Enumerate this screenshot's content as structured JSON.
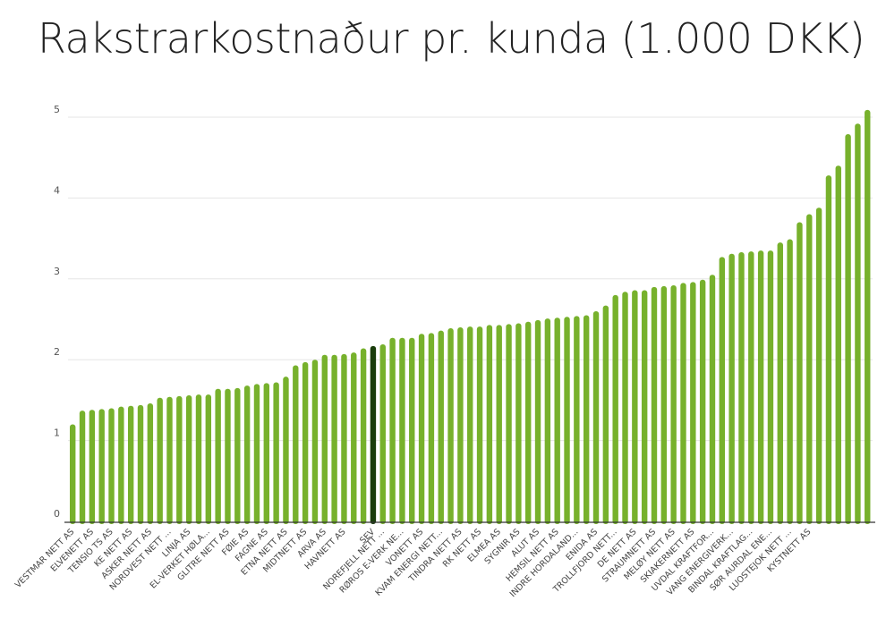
{
  "colors": {
    "bar": "#77b12c",
    "highlight": "#1a3d0c",
    "grid": "#e6e6e6",
    "axis": "#333333"
  },
  "chart_data": {
    "type": "bar",
    "title": "Rakstrarkostnaður pr. kunda (1.000 DKK)",
    "xlabel": "",
    "ylabel": "",
    "ylim": [
      0,
      5.2
    ],
    "yticks": [
      0,
      1,
      2,
      3,
      4,
      5
    ],
    "grid": true,
    "highlight_label": "SEV",
    "values": [
      1.2,
      1.37,
      1.38,
      1.39,
      1.4,
      1.42,
      1.43,
      1.44,
      1.46,
      1.53,
      1.54,
      1.55,
      1.56,
      1.57,
      1.57,
      1.64,
      1.64,
      1.65,
      1.68,
      1.7,
      1.71,
      1.72,
      1.79,
      1.93,
      1.97,
      2.0,
      2.06,
      2.06,
      2.07,
      2.09,
      2.14,
      2.17,
      2.19,
      2.27,
      2.27,
      2.27,
      2.32,
      2.33,
      2.36,
      2.39,
      2.4,
      2.41,
      2.41,
      2.43,
      2.43,
      2.44,
      2.45,
      2.47,
      2.49,
      2.51,
      2.52,
      2.53,
      2.54,
      2.55,
      2.6,
      2.67,
      2.8,
      2.84,
      2.86,
      2.86,
      2.9,
      2.91,
      2.92,
      2.95,
      2.96,
      2.99,
      3.05,
      3.27,
      3.31,
      3.33,
      3.34,
      3.35,
      3.35,
      3.45,
      3.49,
      3.7,
      3.8,
      3.88,
      4.28,
      4.4,
      4.79,
      4.92,
      5.09
    ],
    "x_labels": [
      {
        "index": 1,
        "label": "VESTMAR NETT AS"
      },
      {
        "index": 3,
        "label": "ELVENETT AS"
      },
      {
        "index": 5,
        "label": "TENSIO TS AS"
      },
      {
        "index": 7,
        "label": "KE NETT AS"
      },
      {
        "index": 9,
        "label": "ASKER NETT AS"
      },
      {
        "index": 11,
        "label": "NORDVEST NETT ..."
      },
      {
        "index": 13,
        "label": "LINJA AS"
      },
      {
        "index": 15,
        "label": "EL-VERKET HØLA..."
      },
      {
        "index": 17,
        "label": "GLITRE NETT AS"
      },
      {
        "index": 19,
        "label": "FØIE AS"
      },
      {
        "index": 21,
        "label": "FAGNE AS"
      },
      {
        "index": 23,
        "label": "ETNA NETT AS"
      },
      {
        "index": 25,
        "label": "MIDTNETT AS"
      },
      {
        "index": 27,
        "label": "ARVA AS"
      },
      {
        "index": 29,
        "label": "HAVNETT AS"
      },
      {
        "index": 32,
        "label": "SEV"
      },
      {
        "index": 33,
        "label": "NOREFJELL NETT ..."
      },
      {
        "index": 35,
        "label": "RØROS E-VERK NE..."
      },
      {
        "index": 37,
        "label": "VONETT AS"
      },
      {
        "index": 39,
        "label": "KVAM ENERGI NETT..."
      },
      {
        "index": 41,
        "label": "TINDRA NETT AS"
      },
      {
        "index": 43,
        "label": "RK NETT AS"
      },
      {
        "index": 45,
        "label": "ELMEA AS"
      },
      {
        "index": 47,
        "label": "SYGNIR AS"
      },
      {
        "index": 49,
        "label": "ALUT AS"
      },
      {
        "index": 51,
        "label": "HEMSIL NETT AS"
      },
      {
        "index": 53,
        "label": "INDRE HORDALAND..."
      },
      {
        "index": 55,
        "label": "ENIDA AS"
      },
      {
        "index": 57,
        "label": "TROLLFJORD NETT..."
      },
      {
        "index": 59,
        "label": "DE NETT AS"
      },
      {
        "index": 61,
        "label": "STRAUMNETT AS"
      },
      {
        "index": 63,
        "label": "MELØY NETT AS"
      },
      {
        "index": 65,
        "label": "SKIAKERNETT AS"
      },
      {
        "index": 67,
        "label": "UVDAL KRAFTFOR..."
      },
      {
        "index": 69,
        "label": "VANG ENERGIVERK..."
      },
      {
        "index": 71,
        "label": "BINDAL KRAFTLAG..."
      },
      {
        "index": 73,
        "label": "SØR AURDAL ENE..."
      },
      {
        "index": 75,
        "label": "LUOSTEJOK NETT ..."
      },
      {
        "index": 77,
        "label": "KYSTNETT AS"
      }
    ]
  }
}
